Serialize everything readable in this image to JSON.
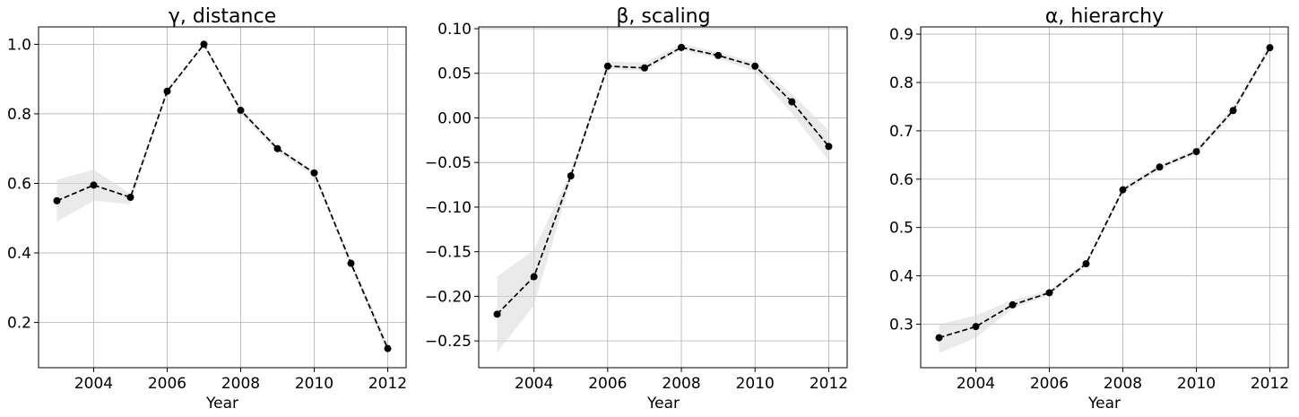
{
  "chart_data": [
    {
      "type": "line",
      "title": "γ, distance",
      "xlabel": "Year",
      "ylabel": "",
      "x": [
        2003,
        2004,
        2005,
        2006,
        2007,
        2008,
        2009,
        2010,
        2011,
        2012
      ],
      "series": [
        {
          "values": [
            0.55,
            0.595,
            0.56,
            0.865,
            1.0,
            0.81,
            0.7,
            0.63,
            0.37,
            0.125
          ],
          "band_low": [
            0.49,
            0.55,
            0.54,
            0.86,
            0.995,
            0.8,
            0.69,
            0.62,
            0.36,
            0.11
          ],
          "band_high": [
            0.61,
            0.64,
            0.57,
            0.87,
            1.0,
            0.815,
            0.705,
            0.635,
            0.38,
            0.14
          ]
        }
      ],
      "xlim": [
        2002.5,
        2012.5
      ],
      "ylim": [
        0.07,
        1.05
      ],
      "xticks": [
        2004,
        2006,
        2008,
        2010,
        2012
      ],
      "yticks": [
        0.2,
        0.4,
        0.6,
        0.8,
        1.0
      ],
      "ytick_labels": [
        "0.2",
        "0.4",
        "0.6",
        "0.8",
        "1.0"
      ],
      "grid": true,
      "color": "#000000",
      "band_color": "#d9d9d9"
    },
    {
      "type": "line",
      "title": "β, scaling",
      "xlabel": "Year",
      "ylabel": "",
      "x": [
        2003,
        2004,
        2005,
        2006,
        2007,
        2008,
        2009,
        2010,
        2011,
        2012
      ],
      "series": [
        {
          "values": [
            -0.22,
            -0.178,
            -0.065,
            0.058,
            0.056,
            0.079,
            0.07,
            0.058,
            0.018,
            -0.032
          ],
          "band_low": [
            -0.263,
            -0.21,
            -0.07,
            0.055,
            0.053,
            0.076,
            0.067,
            0.052,
            0.005,
            -0.048
          ],
          "band_high": [
            -0.178,
            -0.148,
            -0.06,
            0.063,
            0.062,
            0.083,
            0.074,
            0.062,
            0.027,
            -0.014
          ]
        }
      ],
      "xlim": [
        2002.5,
        2012.5
      ],
      "ylim": [
        -0.28,
        0.102
      ],
      "xticks": [
        2004,
        2006,
        2008,
        2010,
        2012
      ],
      "yticks": [
        -0.25,
        -0.2,
        -0.15,
        -0.1,
        -0.05,
        0.0,
        0.05,
        0.1
      ],
      "ytick_labels": [
        "−0.25",
        "−0.20",
        "−0.15",
        "−0.10",
        "−0.05",
        "0.00",
        "0.05",
        "0.10"
      ],
      "grid": true,
      "color": "#000000",
      "band_color": "#d9d9d9"
    },
    {
      "type": "line",
      "title": "α, hierarchy",
      "xlabel": "Year",
      "ylabel": "",
      "x": [
        2003,
        2004,
        2005,
        2006,
        2007,
        2008,
        2009,
        2010,
        2011,
        2012
      ],
      "series": [
        {
          "values": [
            0.272,
            0.295,
            0.34,
            0.365,
            0.425,
            0.578,
            0.625,
            0.657,
            0.742,
            0.872
          ],
          "band_low": [
            0.24,
            0.272,
            0.332,
            0.36,
            0.42,
            0.572,
            0.62,
            0.652,
            0.735,
            0.865
          ],
          "band_high": [
            0.3,
            0.318,
            0.35,
            0.37,
            0.43,
            0.584,
            0.63,
            0.662,
            0.75,
            0.878
          ]
        }
      ],
      "xlim": [
        2002.5,
        2012.5
      ],
      "ylim": [
        0.21,
        0.915
      ],
      "xticks": [
        2004,
        2006,
        2008,
        2010,
        2012
      ],
      "yticks": [
        0.3,
        0.4,
        0.5,
        0.6,
        0.7,
        0.8,
        0.9
      ],
      "ytick_labels": [
        "0.3",
        "0.4",
        "0.5",
        "0.6",
        "0.7",
        "0.8",
        "0.9"
      ],
      "grid": true,
      "color": "#000000",
      "band_color": "#d9d9d9"
    }
  ]
}
